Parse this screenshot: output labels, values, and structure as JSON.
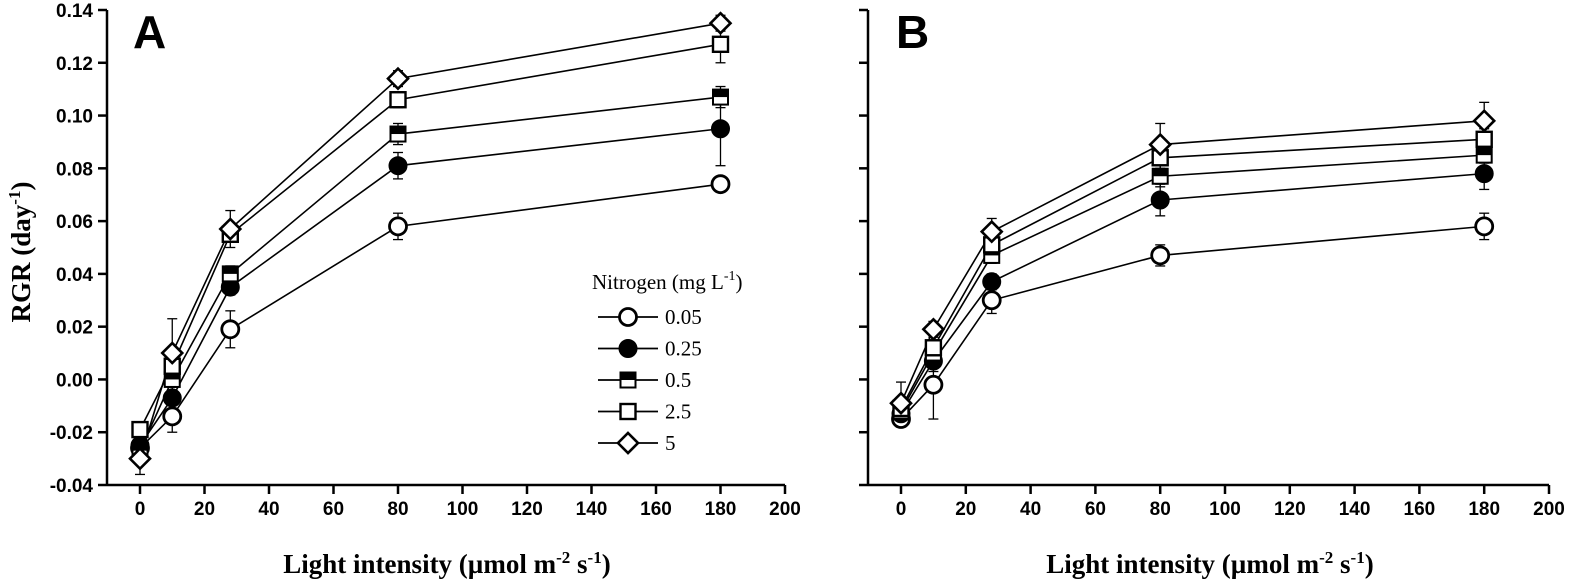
{
  "figure": {
    "y_axis_title": "RGR (day",
    "y_axis_sup": "-1",
    "y_axis_close": ")",
    "x_axis_title_a": "Light intensity (µmol m",
    "x_axis_sup_a": "-2",
    "x_axis_title_b": " s",
    "x_axis_sup_b": "-1",
    "x_axis_close": ")",
    "legend": {
      "title": "Nitrogen (mg L",
      "title_sup": "-1",
      "title_close": ")",
      "entries": [
        "0.05",
        "0.25",
        "0.5",
        "2.5",
        "5"
      ]
    },
    "marker_styles": {
      "0.05": "open-circle",
      "0.25": "filled-circle",
      "0.5": "half-filled-square",
      "2.5": "open-square",
      "5": "open-diamond"
    },
    "colors": {
      "ink": "#000000",
      "background": "#ffffff"
    }
  },
  "chart_data": [
    {
      "type": "line",
      "panel": "A",
      "xlim": [
        -5,
        200
      ],
      "ylim": [
        -0.04,
        0.14
      ],
      "xticks": [
        0,
        20,
        40,
        60,
        80,
        100,
        120,
        140,
        160,
        180,
        200
      ],
      "yticks": [
        -0.04,
        -0.02,
        0.0,
        0.02,
        0.04,
        0.06,
        0.08,
        0.1,
        0.12,
        0.14
      ],
      "ytick_labels": [
        "-0.04",
        "-0.02",
        "0.00",
        "0.02",
        "0.04",
        "0.06",
        "0.08",
        "0.10",
        "0.12",
        "0.14"
      ],
      "x": [
        0,
        10,
        28,
        80,
        180
      ],
      "series": [
        {
          "name": "0.05",
          "values": [
            -0.026,
            -0.014,
            0.019,
            0.058,
            0.074
          ],
          "errors": [
            0.004,
            0.006,
            0.007,
            0.005,
            0.002
          ]
        },
        {
          "name": "0.25",
          "values": [
            -0.025,
            -0.007,
            0.035,
            0.081,
            0.095
          ],
          "errors": [
            0.004,
            0.004,
            0.003,
            0.005,
            0.014
          ]
        },
        {
          "name": "0.5",
          "values": [
            -0.027,
            0.0,
            0.04,
            0.093,
            0.107
          ],
          "errors": [
            0.003,
            0.005,
            0.003,
            0.004,
            0.004
          ]
        },
        {
          "name": "2.5",
          "values": [
            -0.019,
            0.005,
            0.055,
            0.106,
            0.127
          ],
          "errors": [
            0.003,
            0.003,
            0.003,
            0.003,
            0.007
          ]
        },
        {
          "name": "5",
          "values": [
            -0.03,
            0.01,
            0.057,
            0.114,
            0.135
          ],
          "errors": [
            0.006,
            0.013,
            0.007,
            0.003,
            0.003
          ]
        }
      ]
    },
    {
      "type": "line",
      "panel": "B",
      "xlim": [
        -5,
        200
      ],
      "ylim": [
        -0.04,
        0.14
      ],
      "xticks": [
        0,
        20,
        40,
        60,
        80,
        100,
        120,
        140,
        160,
        180,
        200
      ],
      "yticks": [
        -0.04,
        -0.02,
        0.0,
        0.02,
        0.04,
        0.06,
        0.08,
        0.1,
        0.12,
        0.14
      ],
      "x": [
        0,
        10,
        28,
        80,
        180
      ],
      "series": [
        {
          "name": "0.05",
          "values": [
            -0.015,
            -0.002,
            0.03,
            0.047,
            0.058
          ],
          "errors": [
            0.003,
            0.013,
            0.005,
            0.004,
            0.005
          ]
        },
        {
          "name": "0.25",
          "values": [
            -0.013,
            0.007,
            0.037,
            0.068,
            0.078
          ],
          "errors": [
            0.003,
            0.004,
            0.003,
            0.006,
            0.006
          ]
        },
        {
          "name": "0.5",
          "values": [
            -0.012,
            0.01,
            0.047,
            0.077,
            0.085
          ],
          "errors": [
            0.003,
            0.003,
            0.003,
            0.004,
            0.003
          ]
        },
        {
          "name": "2.5",
          "values": [
            -0.011,
            0.012,
            0.051,
            0.084,
            0.091
          ],
          "errors": [
            0.003,
            0.003,
            0.003,
            0.004,
            0.004
          ]
        },
        {
          "name": "5",
          "values": [
            -0.009,
            0.019,
            0.056,
            0.089,
            0.098
          ],
          "errors": [
            0.008,
            0.003,
            0.005,
            0.008,
            0.007
          ]
        }
      ]
    }
  ]
}
